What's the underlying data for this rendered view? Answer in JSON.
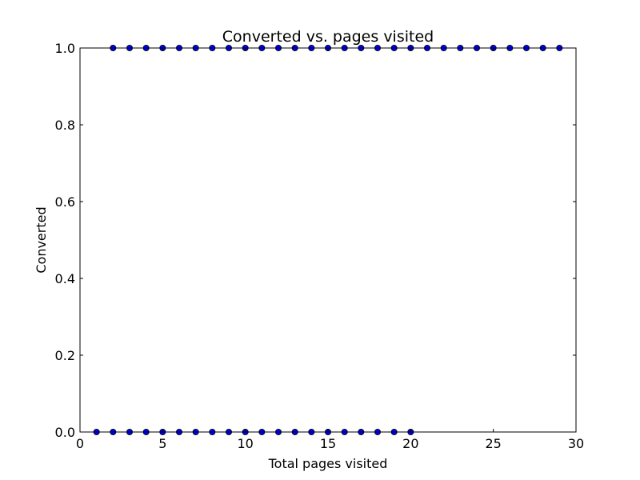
{
  "chart_data": {
    "type": "scatter",
    "title": "Converted vs. pages visited",
    "xlabel": "Total pages visited",
    "ylabel": "Converted",
    "xlim": [
      0,
      30
    ],
    "ylim": [
      0.0,
      1.0
    ],
    "xticks": [
      "0",
      "5",
      "10",
      "15",
      "20",
      "25",
      "30"
    ],
    "yticks": [
      "0.0",
      "0.2",
      "0.4",
      "0.6",
      "0.8",
      "1.0"
    ],
    "grid": false,
    "legend": "none",
    "marker_color": "#0000ff",
    "marker_edge_color": "#000000",
    "series": [
      {
        "points": [
          [
            1,
            0
          ],
          [
            2,
            0
          ],
          [
            3,
            0
          ],
          [
            4,
            0
          ],
          [
            5,
            0
          ],
          [
            6,
            0
          ],
          [
            7,
            0
          ],
          [
            8,
            0
          ],
          [
            9,
            0
          ],
          [
            10,
            0
          ],
          [
            11,
            0
          ],
          [
            12,
            0
          ],
          [
            13,
            0
          ],
          [
            14,
            0
          ],
          [
            15,
            0
          ],
          [
            16,
            0
          ],
          [
            17,
            0
          ],
          [
            18,
            0
          ],
          [
            19,
            0
          ],
          [
            20,
            0
          ],
          [
            2,
            1
          ],
          [
            3,
            1
          ],
          [
            4,
            1
          ],
          [
            5,
            1
          ],
          [
            6,
            1
          ],
          [
            7,
            1
          ],
          [
            8,
            1
          ],
          [
            9,
            1
          ],
          [
            10,
            1
          ],
          [
            11,
            1
          ],
          [
            12,
            1
          ],
          [
            13,
            1
          ],
          [
            14,
            1
          ],
          [
            15,
            1
          ],
          [
            16,
            1
          ],
          [
            17,
            1
          ],
          [
            18,
            1
          ],
          [
            19,
            1
          ],
          [
            20,
            1
          ],
          [
            21,
            1
          ],
          [
            22,
            1
          ],
          [
            23,
            1
          ],
          [
            24,
            1
          ],
          [
            25,
            1
          ],
          [
            26,
            1
          ],
          [
            27,
            1
          ],
          [
            28,
            1
          ],
          [
            29,
            1
          ]
        ]
      }
    ]
  }
}
